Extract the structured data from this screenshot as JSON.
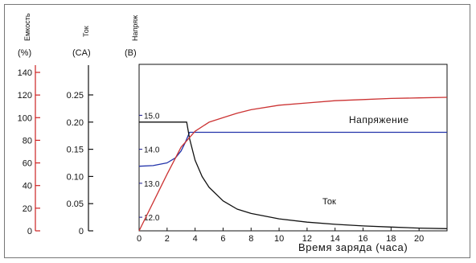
{
  "chart_data": {
    "type": "line",
    "xlabel": "Время заряда (часа)",
    "x_ticks": [
      "0",
      "2",
      "4",
      "6",
      "8",
      "10",
      "12",
      "14",
      "16",
      "18",
      "20"
    ],
    "xlim": [
      0,
      22
    ],
    "axes": [
      {
        "id": "capacity",
        "label": "Емкость",
        "unit": "(%)",
        "color": "#cc2222",
        "ticks": [
          "0",
          "20",
          "40",
          "60",
          "80",
          "100",
          "120",
          "140"
        ],
        "range": [
          0,
          140
        ]
      },
      {
        "id": "current",
        "label": "Ток",
        "unit": "(CA)",
        "color": "#111111",
        "ticks": [
          "0",
          "0.05",
          "0.10",
          "0.15",
          "0.20",
          "0.25"
        ],
        "range": [
          0,
          0.25
        ]
      },
      {
        "id": "voltage",
        "label": "Напряж",
        "unit": "(В)",
        "color": "#1a1a8c",
        "ticks": [
          "12.0",
          "13.0",
          "14.0",
          "15.0"
        ],
        "range": [
          11.6,
          16.5
        ]
      }
    ],
    "series": [
      {
        "name": "Напряжение",
        "axis": "voltage",
        "color": "#2233aa",
        "x": [
          0,
          1,
          2,
          2.6,
          3,
          3.3,
          3.6,
          4,
          5,
          8,
          12,
          16,
          20,
          22
        ],
        "y": [
          13.5,
          13.52,
          13.6,
          13.75,
          13.95,
          14.2,
          14.5,
          14.5,
          14.5,
          14.5,
          14.5,
          14.5,
          14.5,
          14.5
        ]
      },
      {
        "name": "Ток",
        "axis": "current",
        "color": "#111111",
        "x": [
          0,
          1,
          2,
          3,
          3.4,
          3.6,
          4,
          4.5,
          5,
          6,
          7,
          8,
          10,
          12,
          14,
          16,
          18,
          20,
          22
        ],
        "y": [
          0.2,
          0.2,
          0.2,
          0.2,
          0.2,
          0.17,
          0.13,
          0.1,
          0.08,
          0.055,
          0.04,
          0.032,
          0.022,
          0.016,
          0.012,
          0.009,
          0.007,
          0.005,
          0.004
        ]
      },
      {
        "name": "Емкость",
        "axis": "capacity",
        "color": "#cc3333",
        "x": [
          0,
          1,
          2,
          3,
          4,
          5,
          6,
          7,
          8,
          10,
          12,
          14,
          16,
          18,
          20,
          22
        ],
        "y": [
          0,
          25,
          50,
          74,
          88,
          96,
          100,
          104,
          107,
          111,
          113,
          115,
          116,
          117,
          117.5,
          118
        ]
      }
    ],
    "annotations": [
      "Напряжение",
      "Ток"
    ],
    "grid": false
  }
}
